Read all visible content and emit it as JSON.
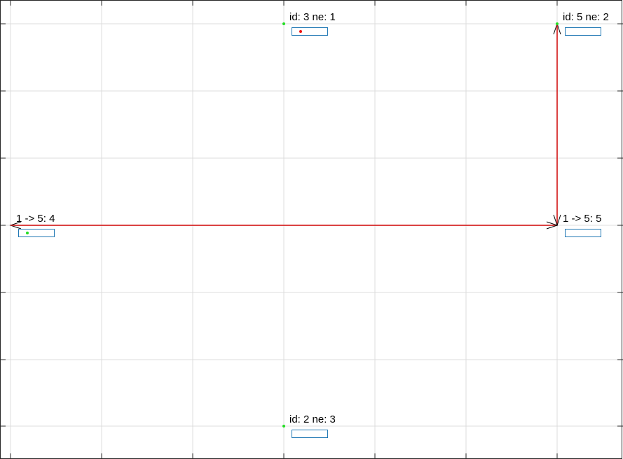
{
  "colors": {
    "background": "#ffffff",
    "grid": "#dcdcdc",
    "frame": "#262626",
    "edge": "#d62728",
    "arrowhead": "#000000",
    "marker_green": "#22dd22",
    "marker_red": "#ee1111",
    "box_stroke": "#1f77b4"
  },
  "nodes": [
    {
      "key": "node-id3",
      "label": "id: 3 ne: 1",
      "marker": "green",
      "box_dot": "red"
    },
    {
      "key": "node-id5",
      "label": "id: 5 ne: 2",
      "marker": "green",
      "box_dot": null
    },
    {
      "key": "node-1-5-4",
      "label": "1 -> 5: 4",
      "marker": null,
      "box_dot": "green"
    },
    {
      "key": "node-1-5-5",
      "label": "1 -> 5: 5",
      "marker": null,
      "box_dot": null
    },
    {
      "key": "node-id2",
      "label": "id: 2 ne: 3",
      "marker": "green",
      "box_dot": null
    }
  ],
  "edges": [
    {
      "from": "node-1-5-5",
      "to": "node-id5"
    },
    {
      "from": "node-id5",
      "to": "node-1-5-5"
    },
    {
      "from": "node-1-5-5",
      "to": "node-1-5-4"
    },
    {
      "from": "node-1-5-4",
      "to": "node-1-5-5"
    }
  ]
}
